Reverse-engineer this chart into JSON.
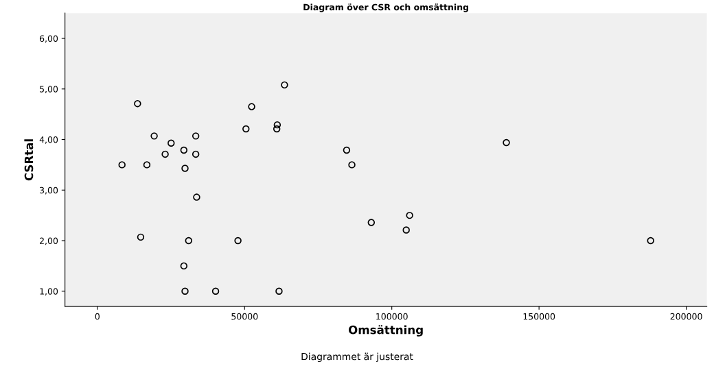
{
  "chart_data": {
    "type": "scatter",
    "title": "Diagram över CSR och omsättning",
    "xlabel": "Omsättning",
    "ylabel": "CSRtal",
    "annotations": [
      "Diagrammet är justerat"
    ],
    "x": [
      8370,
      13650,
      19300,
      25050,
      23030,
      29380,
      33420,
      33420,
      16820,
      29770,
      33720,
      14720,
      31000,
      47750,
      29380,
      29770,
      40160,
      61700,
      63560,
      52400,
      50470,
      61100,
      60940,
      84660,
      86440,
      93030,
      106050,
      104900,
      138900,
      187900
    ],
    "values": [
      3.5,
      4.71,
      4.07,
      3.93,
      3.71,
      3.79,
      4.07,
      3.71,
      3.5,
      3.43,
      2.86,
      2.07,
      2.0,
      2.0,
      1.5,
      1.0,
      1.0,
      1.0,
      5.08,
      4.65,
      4.21,
      4.29,
      4.21,
      3.79,
      3.5,
      2.36,
      2.5,
      2.21,
      3.94,
      2.0
    ],
    "color": "#000000",
    "marker": "circle",
    "xlim": [
      -11000,
      207000
    ],
    "xticks": [
      0,
      50000,
      100000,
      150000,
      200000
    ],
    "ylim": [
      0.7,
      6.5
    ],
    "yticks": [
      {
        "value": 1,
        "label": "1,00"
      },
      {
        "value": 2,
        "label": "2,00"
      },
      {
        "value": 3,
        "label": "3,00"
      },
      {
        "value": 4,
        "label": "4,00"
      },
      {
        "value": 5,
        "label": "5,00"
      },
      {
        "value": 6,
        "label": "6,00"
      }
    ],
    "grid": false,
    "legend": false
  }
}
